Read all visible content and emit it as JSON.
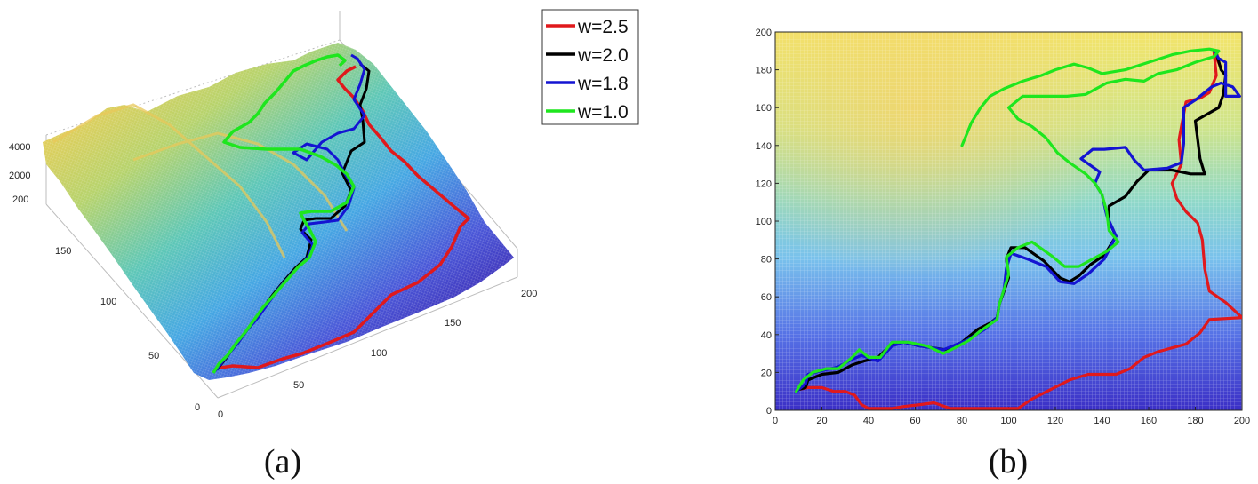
{
  "figure": {
    "caption_a": "(a)",
    "caption_b": "(b)"
  },
  "colors": {
    "w25": "#e0191c",
    "w20": "#000000",
    "w18": "#1414d2",
    "w10": "#1ee61e"
  },
  "chart_data": [
    {
      "panel": "a",
      "type": "surface3d",
      "title": "",
      "x_ticks": [
        0,
        50,
        100,
        150,
        200
      ],
      "y_ticks": [
        0,
        50,
        100,
        150,
        200
      ],
      "z_ticks": [
        2000,
        4000
      ],
      "xlim": [
        0,
        200
      ],
      "ylim": [
        0,
        200
      ],
      "legend": {
        "position": "top-right",
        "entries": [
          {
            "label": "w=2.5",
            "color": "#e0191c"
          },
          {
            "label": "w=2.0",
            "color": "#000000"
          },
          {
            "label": "w=1.8",
            "color": "#1414d2"
          },
          {
            "label": "w=1.0",
            "color": "#1ee61e"
          }
        ]
      },
      "colormap": "parula",
      "note": "Terrain elevation surface with four paths draped on it (same paths as panel b)."
    },
    {
      "panel": "b",
      "type": "line",
      "title": "",
      "xlabel": "",
      "ylabel": "",
      "xlim": [
        0,
        200
      ],
      "ylim": [
        0,
        200
      ],
      "x_ticks": [
        0,
        20,
        40,
        60,
        80,
        100,
        120,
        140,
        160,
        180,
        200
      ],
      "y_ticks": [
        0,
        20,
        40,
        60,
        80,
        100,
        120,
        140,
        160,
        180,
        200
      ],
      "background": "terrain elevation mesh (top view, parula colormap)",
      "series": [
        {
          "name": "w=2.5",
          "color": "#e0191c",
          "points": [
            [
              10,
              11
            ],
            [
              14,
              12
            ],
            [
              20,
              12
            ],
            [
              25,
              10
            ],
            [
              30,
              10
            ],
            [
              34,
              8
            ],
            [
              37,
              3
            ],
            [
              40,
              1
            ],
            [
              50,
              1
            ],
            [
              55,
              2
            ],
            [
              62,
              3
            ],
            [
              68,
              4
            ],
            [
              75,
              1
            ],
            [
              90,
              1
            ],
            [
              104,
              1
            ],
            [
              110,
              6
            ],
            [
              118,
              11
            ],
            [
              126,
              16
            ],
            [
              134,
              19
            ],
            [
              142,
              19
            ],
            [
              146,
              19
            ],
            [
              152,
              22
            ],
            [
              158,
              28
            ],
            [
              164,
              31
            ],
            [
              170,
              33
            ],
            [
              176,
              35
            ],
            [
              182,
              41
            ],
            [
              186,
              48
            ],
            [
              200,
              49
            ],
            [
              200,
              49
            ],
            [
              193,
              57
            ],
            [
              186,
              63
            ],
            [
              184,
              75
            ],
            [
              183,
              90
            ],
            [
              181,
              99
            ],
            [
              176,
              105
            ],
            [
              172,
              112
            ],
            [
              170,
              120
            ],
            [
              174,
              130
            ],
            [
              173,
              143
            ],
            [
              174,
              150
            ],
            [
              176,
              163
            ],
            [
              182,
              165
            ],
            [
              186,
              168
            ],
            [
              189,
              177
            ],
            [
              188,
              189
            ],
            [
              191,
              181
            ]
          ]
        },
        {
          "name": "w=2.0",
          "color": "#000000",
          "points": [
            [
              10,
              11
            ],
            [
              13,
              12
            ],
            [
              14,
              16
            ],
            [
              20,
              19
            ],
            [
              27,
              20
            ],
            [
              33,
              24
            ],
            [
              38,
              26
            ],
            [
              44,
              28
            ],
            [
              50,
              35
            ],
            [
              55,
              36
            ],
            [
              62,
              34
            ],
            [
              73,
              32
            ],
            [
              80,
              36
            ],
            [
              87,
              43
            ],
            [
              92,
              46
            ],
            [
              95,
              49
            ],
            [
              96,
              56
            ],
            [
              98,
              63
            ],
            [
              100,
              70
            ],
            [
              99,
              80
            ],
            [
              101,
              86
            ],
            [
              107,
              86
            ],
            [
              115,
              79
            ],
            [
              122,
              70
            ],
            [
              126,
              68
            ],
            [
              130,
              71
            ],
            [
              135,
              77
            ],
            [
              141,
              82
            ],
            [
              146,
              92
            ],
            [
              143,
              100
            ],
            [
              143,
              108
            ],
            [
              150,
              113
            ],
            [
              155,
              121
            ],
            [
              160,
              127
            ],
            [
              170,
              127
            ],
            [
              178,
              125
            ],
            [
              184,
              125
            ],
            [
              182,
              133
            ],
            [
              180,
              153
            ],
            [
              190,
              160
            ],
            [
              192,
              167
            ],
            [
              193,
              177
            ],
            [
              191,
              180
            ],
            [
              189,
              189
            ]
          ]
        },
        {
          "name": "w=1.8",
          "color": "#1414d2",
          "points": [
            [
              9,
              10
            ],
            [
              13,
              14
            ],
            [
              14,
              19
            ],
            [
              20,
              21
            ],
            [
              27,
              23
            ],
            [
              33,
              27
            ],
            [
              37,
              29
            ],
            [
              44,
              26
            ],
            [
              50,
              34
            ],
            [
              55,
              36
            ],
            [
              62,
              34
            ],
            [
              72,
              32
            ],
            [
              82,
              37
            ],
            [
              90,
              43
            ],
            [
              95,
              49
            ],
            [
              96,
              56
            ],
            [
              98,
              64
            ],
            [
              99,
              75
            ],
            [
              101,
              83
            ],
            [
              108,
              80
            ],
            [
              116,
              76
            ],
            [
              122,
              68
            ],
            [
              128,
              67
            ],
            [
              134,
              72
            ],
            [
              141,
              80
            ],
            [
              146,
              92
            ],
            [
              142,
              103
            ],
            [
              140,
              114
            ],
            [
              137,
              120
            ],
            [
              139,
              126
            ],
            [
              131,
              133
            ],
            [
              136,
              138
            ],
            [
              141,
              138
            ],
            [
              150,
              139
            ],
            [
              154,
              132
            ],
            [
              158,
              127
            ],
            [
              168,
              128
            ],
            [
              174,
              131
            ],
            [
              175,
              141
            ],
            [
              175,
              150
            ],
            [
              175,
              160
            ],
            [
              180,
              164
            ],
            [
              183,
              167
            ],
            [
              187,
              171
            ],
            [
              191,
              173
            ],
            [
              196,
              171
            ],
            [
              199,
              166
            ],
            [
              193,
              166
            ],
            [
              193,
              175
            ],
            [
              193,
              184
            ],
            [
              190,
              186
            ],
            [
              188,
              190
            ]
          ]
        },
        {
          "name": "w=1.0",
          "color": "#1ee61e",
          "points": [
            [
              9,
              10
            ],
            [
              12,
              16
            ],
            [
              16,
              20
            ],
            [
              22,
              22
            ],
            [
              27,
              22
            ],
            [
              33,
              28
            ],
            [
              36,
              32
            ],
            [
              40,
              28
            ],
            [
              45,
              28
            ],
            [
              50,
              36
            ],
            [
              57,
              36
            ],
            [
              65,
              34
            ],
            [
              72,
              30
            ],
            [
              77,
              33
            ],
            [
              83,
              37
            ],
            [
              88,
              42
            ],
            [
              95,
              48
            ],
            [
              96,
              56
            ],
            [
              98,
              64
            ],
            [
              100,
              72
            ],
            [
              99,
              81
            ],
            [
              104,
              86
            ],
            [
              110,
              89
            ],
            [
              118,
              82
            ],
            [
              124,
              76
            ],
            [
              130,
              76
            ],
            [
              136,
              80
            ],
            [
              142,
              84
            ],
            [
              147,
              89
            ],
            [
              143,
              95
            ],
            [
              142,
              105
            ],
            [
              140,
              114
            ],
            [
              137,
              120
            ],
            [
              133,
              125
            ],
            [
              126,
              131
            ],
            [
              121,
              136
            ],
            [
              116,
              144
            ],
            [
              110,
              150
            ],
            [
              104,
              154
            ],
            [
              100,
              160
            ],
            [
              106,
              166
            ],
            [
              115,
              166
            ],
            [
              125,
              166
            ],
            [
              133,
              167
            ],
            [
              142,
              173
            ],
            [
              150,
              175
            ],
            [
              158,
              174
            ],
            [
              164,
              178
            ],
            [
              172,
              180
            ],
            [
              180,
              184
            ],
            [
              188,
              187
            ],
            [
              190,
              190
            ],
            [
              186,
              191
            ],
            [
              178,
              190
            ],
            [
              170,
              188
            ],
            [
              160,
              184
            ],
            [
              150,
              180
            ],
            [
              140,
              178
            ],
            [
              134,
              181
            ],
            [
              128,
              183
            ],
            [
              120,
              180
            ],
            [
              114,
              177
            ],
            [
              106,
              174
            ],
            [
              98,
              170
            ],
            [
              92,
              166
            ],
            [
              88,
              160
            ],
            [
              84,
              152
            ],
            [
              82,
              146
            ],
            [
              80,
              140
            ]
          ]
        }
      ]
    }
  ]
}
